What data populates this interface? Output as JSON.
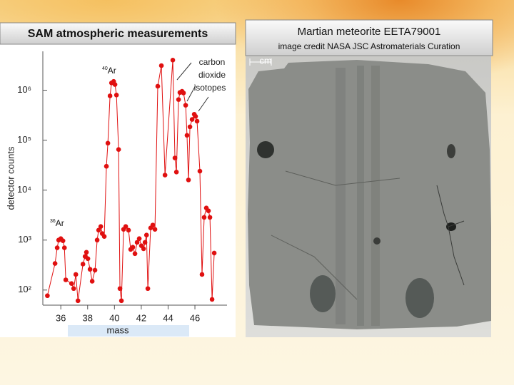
{
  "chart_data": {
    "type": "line",
    "title": "SAM atmospheric measurements",
    "x_label": "mass",
    "y_label": "detector counts",
    "log_y": true,
    "color": "#e01010",
    "xlim": [
      34.5,
      48.5
    ],
    "xticks": [
      36,
      38,
      40,
      42,
      44,
      46
    ],
    "ylim": [
      55,
      6000000
    ],
    "yticks": [
      {
        "value": 100,
        "label": "10²"
      },
      {
        "value": 1000,
        "label": "10³"
      },
      {
        "value": 10000,
        "label": "10⁴"
      },
      {
        "value": 100000,
        "label": "10⁵"
      },
      {
        "value": 1000000,
        "label": "10⁶"
      }
    ],
    "x": [
      35.0,
      35.57,
      35.73,
      35.84,
      36.0,
      36.16,
      36.27,
      36.37,
      36.8,
      36.96,
      37.12,
      37.28,
      37.65,
      37.81,
      37.91,
      38.02,
      38.18,
      38.34,
      38.55,
      38.71,
      38.82,
      38.98,
      39.09,
      39.24,
      39.4,
      39.51,
      39.67,
      39.78,
      39.94,
      40.04,
      40.15,
      40.31,
      40.41,
      40.52,
      40.68,
      40.84,
      41.05,
      41.21,
      41.37,
      41.53,
      41.69,
      41.85,
      42.01,
      42.17,
      42.28,
      42.39,
      42.49,
      42.7,
      42.86,
      43.02,
      43.23,
      43.5,
      43.77,
      44.35,
      44.51,
      44.62,
      44.78,
      44.88,
      45.04,
      45.15,
      45.31,
      45.41,
      45.52,
      45.63,
      45.79,
      45.95,
      46.05,
      46.16,
      46.37,
      46.53,
      46.69,
      46.85,
      47.01,
      47.12,
      47.28,
      47.44
    ],
    "values": [
      77,
      340,
      700,
      1000,
      1070,
      970,
      700,
      160,
      135,
      107,
      205,
      61,
      330,
      470,
      570,
      425,
      260,
      150,
      250,
      1000,
      1580,
      1870,
      1350,
      1180,
      30000,
      87000,
      770000,
      1400000,
      1500000,
      1300000,
      800000,
      65000,
      107,
      61,
      1640,
      1870,
      1580,
      650,
      720,
      535,
      900,
      1070,
      770,
      670,
      900,
      1260,
      107,
      1750,
      2000,
      1640,
      1200000,
      3100000,
      20000,
      4000000,
      44000,
      23000,
      650000,
      900000,
      950000,
      880000,
      500000,
      125000,
      16000,
      185000,
      260000,
      330000,
      300000,
      240000,
      24000,
      205,
      2850,
      4400,
      3850,
      2850,
      65,
      550
    ],
    "annotations": [
      {
        "sup": "36",
        "text": "Ar"
      },
      {
        "sup": "40",
        "text": "Ar"
      },
      {
        "lines": [
          "carbon",
          "dioxide",
          "isotopes"
        ]
      }
    ]
  },
  "photo_panel": {
    "title": "Martian meteorite EETA79001",
    "credit": "image credit NASA JSC Astromaterials Curation",
    "scale_label": "cm"
  }
}
